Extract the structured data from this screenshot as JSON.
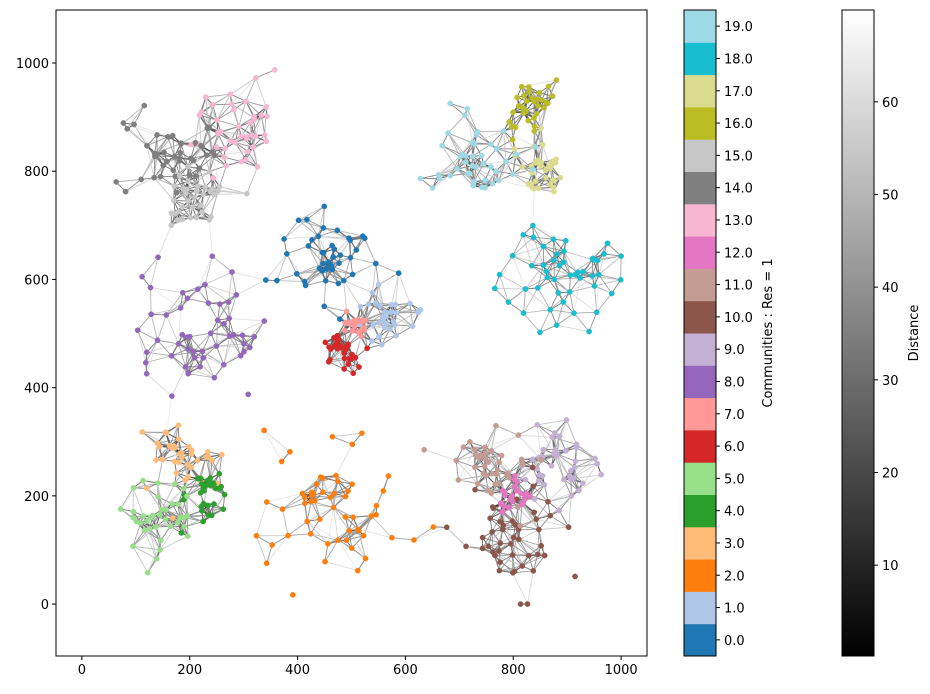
{
  "chart_data": {
    "type": "network",
    "xlim": [
      -48,
      1048
    ],
    "ylim": [
      -96,
      1098
    ],
    "x_ticks": [
      "0",
      "200",
      "400",
      "600",
      "800",
      "1000"
    ],
    "y_ticks": [
      "0",
      "200",
      "400",
      "600",
      "800",
      "1000"
    ],
    "grid": false,
    "communities_colorbar": {
      "label": "Communities : Res = 1",
      "ticks": [
        "0.0",
        "1.0",
        "2.0",
        "3.0",
        "4.0",
        "5.0",
        "6.0",
        "7.0",
        "8.0",
        "9.0",
        "10.0",
        "11.0",
        "12.0",
        "13.0",
        "14.0",
        "15.0",
        "16.0",
        "17.0",
        "18.0",
        "19.0"
      ],
      "colors": [
        "#1f77b4",
        "#aec7e8",
        "#ff7f0e",
        "#ffbb78",
        "#2ca02c",
        "#98df8a",
        "#d62728",
        "#ff9896",
        "#9467bd",
        "#c5b0d5",
        "#8c564b",
        "#c49c94",
        "#e377c2",
        "#f7b6d2",
        "#7f7f7f",
        "#c7c7c7",
        "#bcbd22",
        "#dbdb8d",
        "#17becf",
        "#9edae5"
      ]
    },
    "distance_colorbar": {
      "label": "Distance",
      "range": [
        0.2,
        69.9
      ],
      "ticks": [
        "10",
        "20",
        "30",
        "40",
        "50",
        "60"
      ],
      "colormap": "gray"
    },
    "communities": [
      {
        "id": 0,
        "center": [
          460,
          640
        ],
        "spread": 75
      },
      {
        "id": 1,
        "center": [
          560,
          530
        ],
        "spread": 45
      },
      {
        "id": 2,
        "center": [
          470,
          200
        ],
        "spread": 110
      },
      {
        "id": 3,
        "center": [
          190,
          270
        ],
        "spread": 60
      },
      {
        "id": 4,
        "center": [
          230,
          200
        ],
        "spread": 40
      },
      {
        "id": 5,
        "center": [
          150,
          160
        ],
        "spread": 55
      },
      {
        "id": 6,
        "center": [
          480,
          465
        ],
        "spread": 30
      },
      {
        "id": 7,
        "center": [
          505,
          515
        ],
        "spread": 20
      },
      {
        "id": 8,
        "center": [
          210,
          500
        ],
        "spread": 100
      },
      {
        "id": 9,
        "center": [
          880,
          250
        ],
        "spread": 60
      },
      {
        "id": 10,
        "center": [
          790,
          140
        ],
        "spread": 85
      },
      {
        "id": 11,
        "center": [
          760,
          260
        ],
        "spread": 60
      },
      {
        "id": 12,
        "center": [
          805,
          195
        ],
        "spread": 28
      },
      {
        "id": 13,
        "center": [
          280,
          880
        ],
        "spread": 70
      },
      {
        "id": 14,
        "center": [
          160,
          840
        ],
        "spread": 65
      },
      {
        "id": 15,
        "center": [
          210,
          760
        ],
        "spread": 50
      },
      {
        "id": 16,
        "center": [
          830,
          920
        ],
        "spread": 45
      },
      {
        "id": 17,
        "center": [
          850,
          800
        ],
        "spread": 45
      },
      {
        "id": 18,
        "center": [
          880,
          600
        ],
        "spread": 85
      },
      {
        "id": 19,
        "center": [
          740,
          820
        ],
        "spread": 70
      }
    ]
  }
}
